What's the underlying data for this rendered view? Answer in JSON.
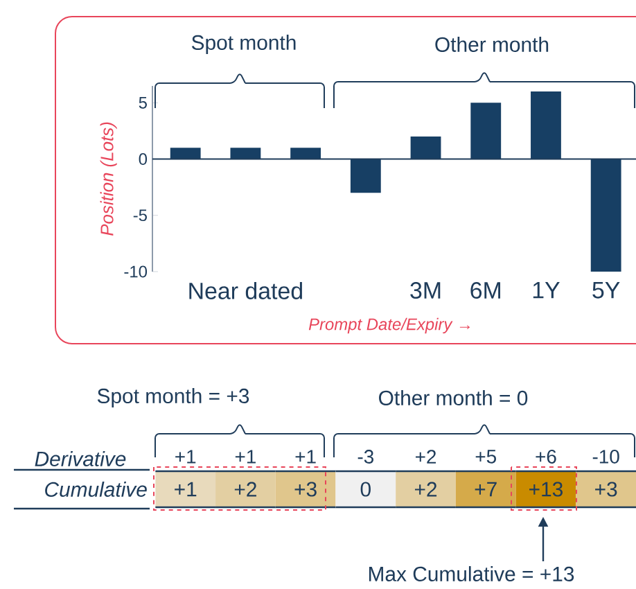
{
  "chart_data": [
    {
      "type": "bar",
      "categories": [
        null,
        "Near dated",
        null,
        null,
        "3M",
        "6M",
        "1Y",
        "5Y"
      ],
      "values": [
        1,
        1,
        1,
        -3,
        2,
        5,
        6,
        -10
      ],
      "color": "#173f64",
      "ylabel": "Position (Lots)",
      "xlabel": "Prompt Date/Expiry →",
      "ylim": [
        -10,
        6.5
      ],
      "yticks": [
        -10,
        -5,
        0,
        5
      ],
      "value_labels": [
        "+1",
        "+1",
        "+1",
        "-3",
        "+2",
        "+5",
        "+6",
        "-10"
      ],
      "annotations": [
        "Spot month",
        "Other month",
        "Derivative"
      ]
    },
    {
      "type": "heatmap",
      "categories": [
        null,
        null,
        null,
        null,
        null,
        null,
        null,
        null
      ],
      "y_categories": [
        "Cumulative"
      ],
      "cells": [
        [
          1,
          2,
          3,
          0,
          2,
          7,
          13,
          3
        ]
      ],
      "cell_labels": [
        [
          "+1",
          "+2",
          "+3",
          "0",
          "+2",
          "+7",
          "+13",
          "+3"
        ]
      ],
      "annotations": [
        "Spot month = +3",
        "Other month = 0",
        "Max Cumulative = +13"
      ]
    }
  ]
}
